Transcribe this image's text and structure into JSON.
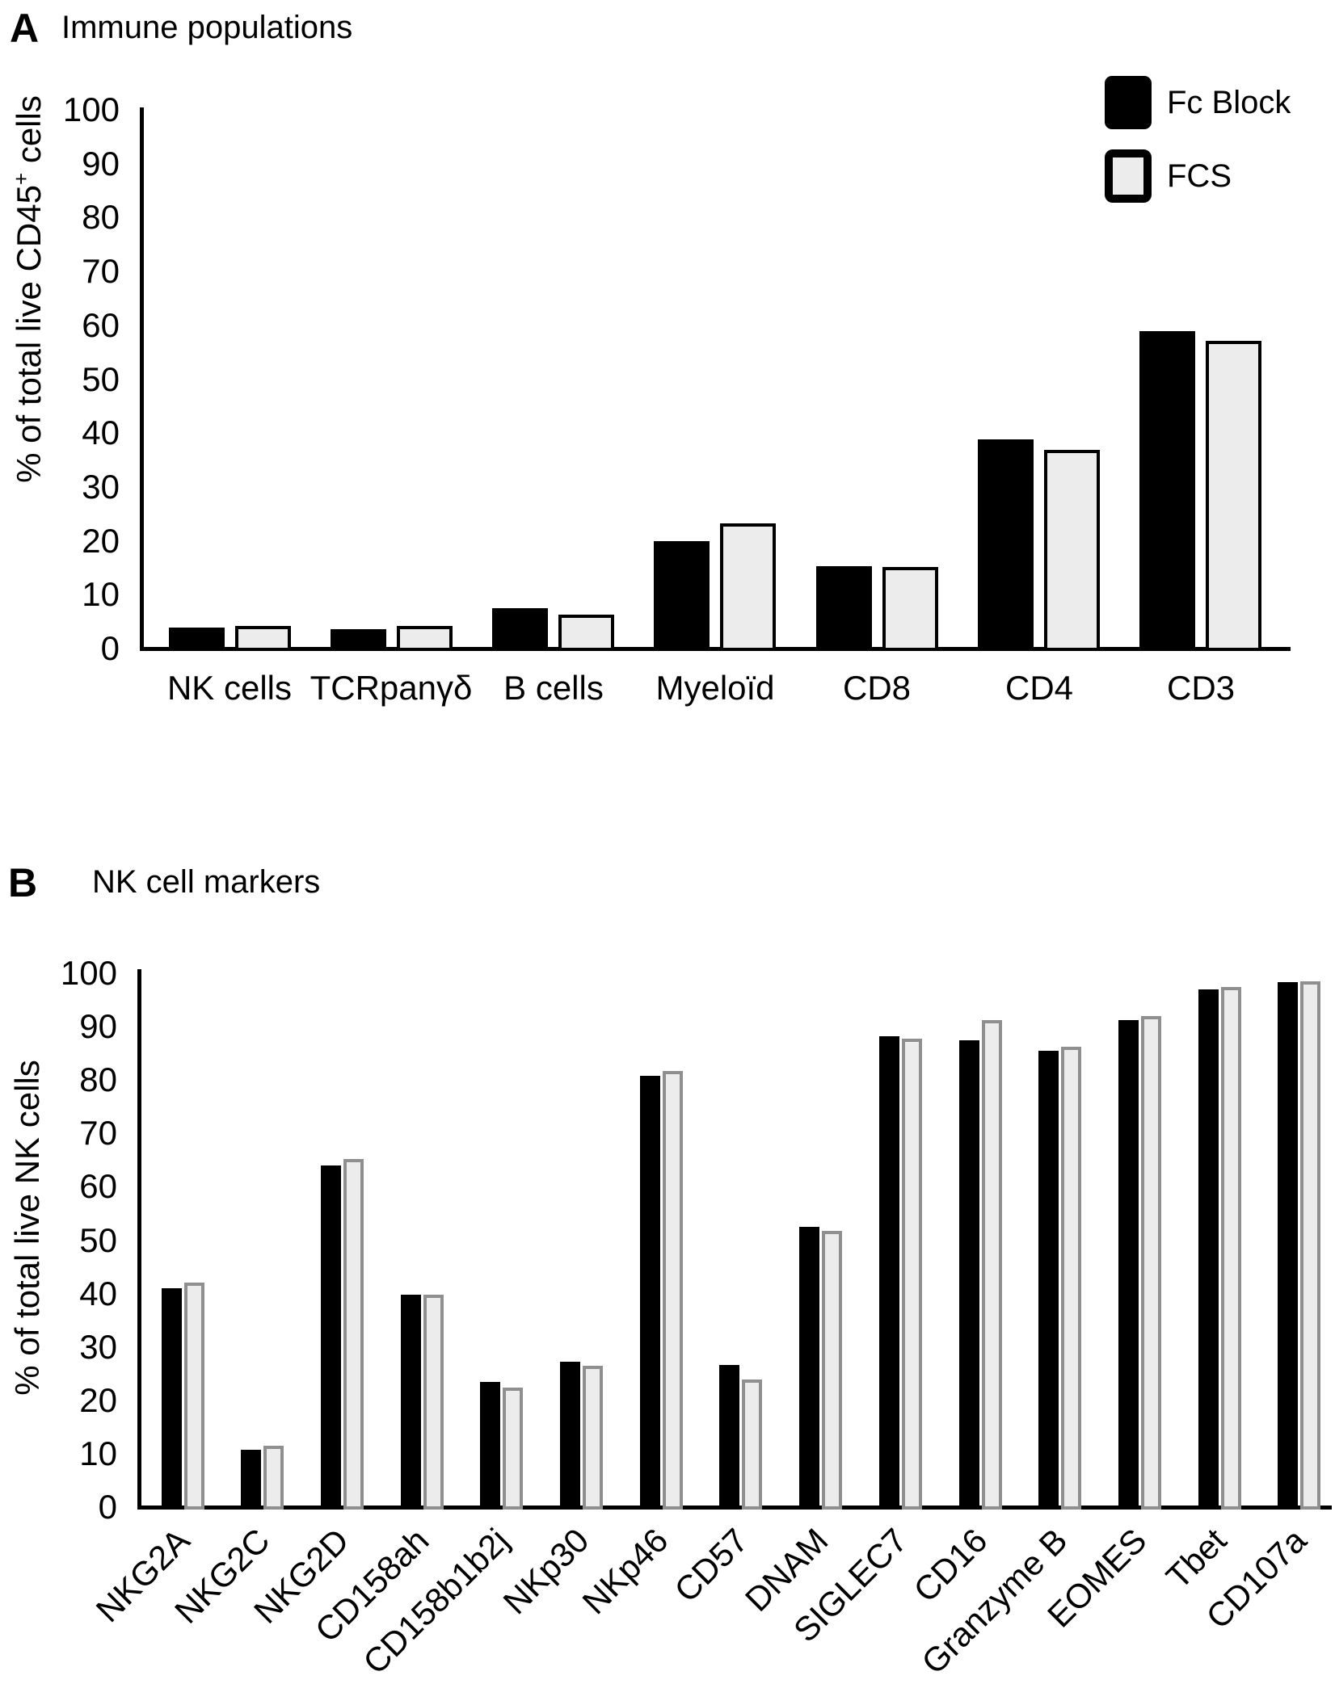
{
  "panels": [
    {
      "letter": "A",
      "title": "Immune populations",
      "ylabel_parts": [
        {
          "text": "% of total live CD45"
        },
        {
          "text": "+",
          "sup": true
        },
        {
          "text": " cells"
        }
      ]
    },
    {
      "letter": "B",
      "title": "NK cell markers",
      "ylabel_parts": [
        {
          "text": "% of total live NK cells"
        }
      ]
    }
  ],
  "legend": {
    "items": [
      {
        "label": "Fc Block",
        "fill": "#000000",
        "border": "#000000"
      },
      {
        "label": "FCS",
        "fill": "#ececec",
        "border": "#000000"
      }
    ]
  },
  "chart_data": [
    {
      "type": "bar",
      "panel": "A",
      "title": "Immune populations",
      "xlabel": "",
      "ylabel": "% of total live CD45+ cells",
      "ylim": [
        0,
        100
      ],
      "ytick_step": 10,
      "yticks": [
        0,
        10,
        20,
        30,
        40,
        50,
        60,
        70,
        80,
        90,
        100
      ],
      "grid": false,
      "legend_position": "top-right",
      "categories": [
        "NK cells",
        "TCRpanγδ",
        "B cells",
        "Myeloïd",
        "CD8",
        "CD4",
        "CD3"
      ],
      "series": [
        {
          "name": "Fc Block",
          "color": "#000000",
          "values": [
            4.4,
            4.0,
            8.0,
            20.4,
            15.7,
            39.3,
            59.3
          ]
        },
        {
          "name": "FCS",
          "color": "#ececec",
          "values": [
            4.6,
            4.6,
            6.7,
            23.7,
            15.6,
            37.4,
            57.5
          ]
        }
      ]
    },
    {
      "type": "bar",
      "panel": "B",
      "title": "NK cell markers",
      "xlabel": "",
      "ylabel": "% of total live NK cells",
      "ylim": [
        0,
        100
      ],
      "ytick_step": 10,
      "yticks": [
        0,
        10,
        20,
        30,
        40,
        50,
        60,
        70,
        80,
        90,
        100
      ],
      "grid": false,
      "legend_position": "none",
      "categories": [
        "NKG2A",
        "NKG2C",
        "NKG2D",
        "CD158ah",
        "CD158b1b2j",
        "NKp30",
        "NKp46",
        "CD57",
        "DNAM",
        "SIGLEC7",
        "CD16",
        "Granzyme B",
        "EOMES",
        "Tbet",
        "CD107a"
      ],
      "series": [
        {
          "name": "Fc Block",
          "color": "#000000",
          "values": [
            41.4,
            11.2,
            64.5,
            40.3,
            23.9,
            27.7,
            81.3,
            27.1,
            52.9,
            88.6,
            87.9,
            86.0,
            91.7,
            97.4,
            98.8
          ]
        },
        {
          "name": "FCS",
          "color": "#ececec",
          "values": [
            42.5,
            12.0,
            65.6,
            40.2,
            22.9,
            27.0,
            82.2,
            24.4,
            52.2,
            88.2,
            91.7,
            86.7,
            92.5,
            97.9,
            98.9
          ]
        }
      ]
    }
  ]
}
